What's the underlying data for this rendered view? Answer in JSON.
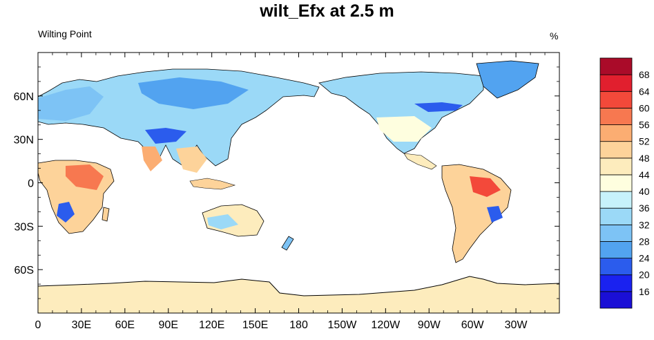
{
  "title": "wilt_Efx at 2.5 m",
  "left_label": "Wilting Point",
  "right_label": "%",
  "lon_ticks": [
    "0",
    "30E",
    "60E",
    "90E",
    "120E",
    "150E",
    "180",
    "150W",
    "120W",
    "90W",
    "60W",
    "30W"
  ],
  "lat_ticks": [
    "60N",
    "30N",
    "0",
    "30S",
    "60S"
  ],
  "colorbar": {
    "labels": [
      "16",
      "20",
      "24",
      "28",
      "32",
      "36",
      "40",
      "44",
      "48",
      "52",
      "56",
      "60",
      "64",
      "68"
    ],
    "colors": [
      "#1a0fd6",
      "#1a22f0",
      "#2b5ced",
      "#52a3f0",
      "#7dc3f5",
      "#9bd9f7",
      "#c7f2fb",
      "#fefedf",
      "#fdecbd",
      "#fdd39a",
      "#fbad72",
      "#f77850",
      "#f3493a",
      "#e11f2e",
      "#aa0b29"
    ]
  },
  "colors": {
    "ocean": "#ffffff",
    "antarctica": "#fdecbd",
    "coast": "#000000"
  }
}
